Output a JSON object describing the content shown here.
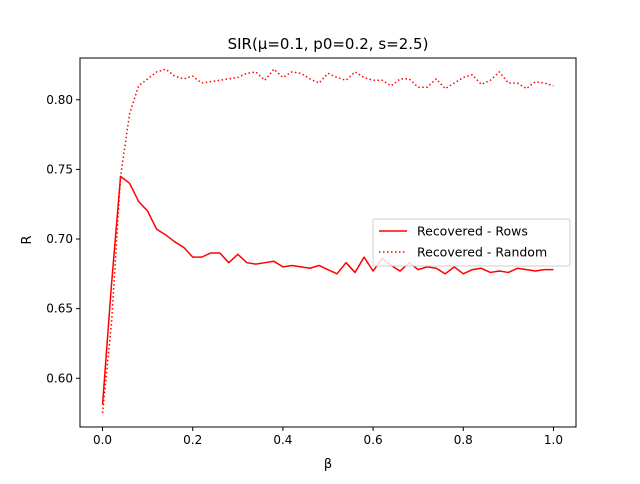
{
  "chart_data": {
    "type": "line",
    "title": "SIR(μ=0.1, p0=0.2, s=2.5)",
    "xlabel": "β",
    "ylabel": "R",
    "xlim": [
      -0.05,
      1.05
    ],
    "ylim": [
      0.565,
      0.83
    ],
    "xticks": [
      0.0,
      0.2,
      0.4,
      0.6,
      0.8,
      1.0
    ],
    "xtick_labels": [
      "0.0",
      "0.2",
      "0.4",
      "0.6",
      "0.8",
      "1.0"
    ],
    "yticks": [
      0.6,
      0.65,
      0.7,
      0.75,
      0.8
    ],
    "ytick_labels": [
      "0.60",
      "0.65",
      "0.70",
      "0.75",
      "0.80"
    ],
    "grid": false,
    "legend_position": "center-right",
    "series": [
      {
        "name": "Recovered - Rows",
        "color": "#ff0000",
        "style": "solid",
        "x": [
          0.0,
          0.02,
          0.04,
          0.06,
          0.08,
          0.1,
          0.12,
          0.14,
          0.16,
          0.18,
          0.2,
          0.22,
          0.24,
          0.26,
          0.28,
          0.3,
          0.32,
          0.34,
          0.36,
          0.38,
          0.4,
          0.42,
          0.44,
          0.46,
          0.48,
          0.5,
          0.52,
          0.54,
          0.56,
          0.58,
          0.6,
          0.62,
          0.64,
          0.66,
          0.68,
          0.7,
          0.72,
          0.74,
          0.76,
          0.78,
          0.8,
          0.82,
          0.84,
          0.86,
          0.88,
          0.9,
          0.92,
          0.94,
          0.96,
          0.98,
          1.0
        ],
        "y": [
          0.581,
          0.668,
          0.745,
          0.74,
          0.727,
          0.72,
          0.707,
          0.703,
          0.698,
          0.694,
          0.687,
          0.687,
          0.69,
          0.69,
          0.683,
          0.689,
          0.683,
          0.682,
          0.683,
          0.684,
          0.68,
          0.681,
          0.68,
          0.679,
          0.681,
          0.678,
          0.675,
          0.683,
          0.676,
          0.687,
          0.677,
          0.686,
          0.681,
          0.677,
          0.683,
          0.678,
          0.68,
          0.679,
          0.675,
          0.68,
          0.675,
          0.678,
          0.679,
          0.676,
          0.677,
          0.676,
          0.679,
          0.678,
          0.677,
          0.678,
          0.678
        ]
      },
      {
        "name": "Recovered - Random",
        "color": "#ff0000",
        "style": "dotted",
        "x": [
          0.0,
          0.02,
          0.04,
          0.06,
          0.08,
          0.1,
          0.12,
          0.14,
          0.16,
          0.18,
          0.2,
          0.22,
          0.24,
          0.26,
          0.28,
          0.3,
          0.32,
          0.34,
          0.36,
          0.38,
          0.4,
          0.42,
          0.44,
          0.46,
          0.48,
          0.5,
          0.52,
          0.54,
          0.56,
          0.58,
          0.6,
          0.62,
          0.64,
          0.66,
          0.68,
          0.7,
          0.72,
          0.74,
          0.76,
          0.78,
          0.8,
          0.82,
          0.84,
          0.86,
          0.88,
          0.9,
          0.92,
          0.94,
          0.96,
          0.98,
          1.0
        ],
        "y": [
          0.575,
          0.64,
          0.745,
          0.79,
          0.81,
          0.815,
          0.82,
          0.822,
          0.817,
          0.815,
          0.817,
          0.812,
          0.813,
          0.814,
          0.815,
          0.816,
          0.819,
          0.82,
          0.814,
          0.822,
          0.816,
          0.82,
          0.819,
          0.815,
          0.812,
          0.819,
          0.816,
          0.814,
          0.82,
          0.816,
          0.814,
          0.814,
          0.81,
          0.815,
          0.815,
          0.809,
          0.809,
          0.815,
          0.808,
          0.812,
          0.816,
          0.818,
          0.811,
          0.814,
          0.82,
          0.812,
          0.812,
          0.808,
          0.813,
          0.812,
          0.81
        ]
      }
    ]
  }
}
